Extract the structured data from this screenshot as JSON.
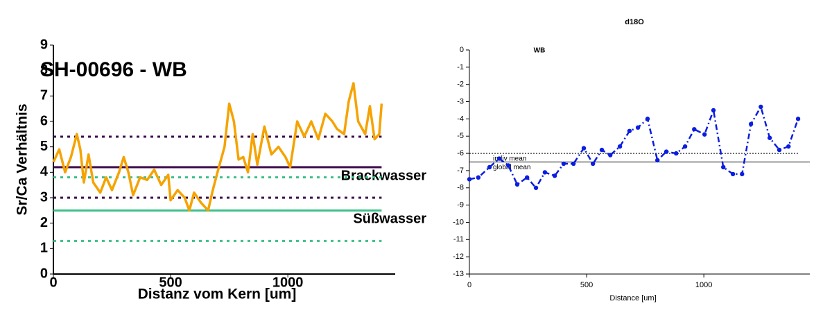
{
  "chart_data": [
    {
      "type": "line",
      "title": "SH-00696 - WB",
      "xlabel": "Distanz vom Kern [um]",
      "ylabel": "Sr/Ca Verhältnis",
      "xlim": [
        0,
        1458
      ],
      "xticks": [
        0,
        500,
        1000
      ],
      "ylim": [
        0,
        9
      ],
      "yticks": [
        0,
        1,
        2,
        3,
        4,
        5,
        6,
        7,
        8,
        9
      ],
      "series": [
        {
          "color": "#f5a300",
          "marker": false,
          "x": [
            0,
            25,
            50,
            75,
            100,
            115,
            130,
            150,
            170,
            200,
            225,
            250,
            280,
            300,
            320,
            340,
            370,
            400,
            430,
            460,
            490,
            500,
            530,
            560,
            580,
            600,
            630,
            660,
            680,
            700,
            730,
            750,
            770,
            790,
            810,
            830,
            850,
            870,
            900,
            930,
            960,
            990,
            1010,
            1040,
            1070,
            1100,
            1130,
            1160,
            1190,
            1210,
            1240,
            1260,
            1280,
            1300,
            1330,
            1350,
            1370,
            1390,
            1400
          ],
          "values": [
            4.4,
            4.9,
            4.0,
            4.6,
            5.5,
            4.9,
            3.6,
            4.7,
            3.6,
            3.2,
            3.8,
            3.3,
            4.0,
            4.6,
            4.0,
            3.1,
            3.8,
            3.7,
            4.1,
            3.5,
            3.9,
            2.9,
            3.3,
            3.0,
            2.5,
            3.2,
            2.8,
            2.5,
            3.3,
            4.0,
            5.0,
            6.7,
            6.0,
            4.5,
            4.6,
            4.0,
            5.5,
            4.3,
            5.8,
            4.7,
            5.0,
            4.6,
            4.2,
            6.0,
            5.4,
            6.0,
            5.3,
            6.3,
            6.0,
            5.7,
            5.5,
            6.8,
            7.5,
            6.0,
            5.5,
            6.6,
            5.3,
            5.5,
            6.7
          ]
        }
      ],
      "hlines": [
        {
          "value": 5.4,
          "color": "#3d0a4a",
          "style": "dotted",
          "x": [
            0,
            1400
          ]
        },
        {
          "value": 4.2,
          "color": "#3d0a4a",
          "style": "solid",
          "x": [
            0,
            1400
          ],
          "label": "Brackwasser"
        },
        {
          "value": 3.8,
          "color": "#3dbf8a",
          "style": "dotted",
          "x": [
            0,
            1400
          ]
        },
        {
          "value": 3.0,
          "color": "#3d0a4a",
          "style": "dotted",
          "x": [
            0,
            1400
          ]
        },
        {
          "value": 2.5,
          "color": "#3dbf8a",
          "style": "solid",
          "x": [
            0,
            1400
          ],
          "label": "Süßwasser"
        },
        {
          "value": 1.3,
          "color": "#3dbf8a",
          "style": "dotted",
          "x": [
            0,
            1400
          ]
        }
      ]
    },
    {
      "type": "line",
      "title": "d18O",
      "subtitle": "WB",
      "xlabel": "Distance [um]",
      "xlim": [
        0,
        1452
      ],
      "xticks": [
        0,
        500,
        1000
      ],
      "ylim": [
        -13,
        0
      ],
      "yticks": [
        0,
        -1,
        -2,
        -3,
        -4,
        -5,
        -6,
        -7,
        -8,
        -9,
        -10,
        -11,
        -12,
        -13
      ],
      "series": [
        {
          "color": "#0a1de0",
          "marker": true,
          "dashed": true,
          "x": [
            0,
            38,
            86,
            127,
            166,
            204,
            246,
            284,
            322,
            364,
            402,
            444,
            488,
            527,
            565,
            601,
            642,
            683,
            719,
            760,
            802,
            840,
            882,
            920,
            959,
            1003,
            1041,
            1083,
            1124,
            1163,
            1201,
            1243,
            1281,
            1322,
            1361,
            1402
          ],
          "values": [
            -7.5,
            -7.4,
            -6.8,
            -6.3,
            -6.7,
            -7.8,
            -7.4,
            -8.0,
            -7.1,
            -7.3,
            -6.6,
            -6.6,
            -5.7,
            -6.6,
            -5.8,
            -6.1,
            -5.6,
            -4.7,
            -4.5,
            -4.0,
            -6.4,
            -5.9,
            -6.0,
            -5.6,
            -4.6,
            -4.9,
            -3.5,
            -6.8,
            -7.2,
            -7.2,
            -4.3,
            -3.3,
            -5.1,
            -5.8,
            -5.6,
            -4.0
          ]
        }
      ],
      "hlines": [
        {
          "value": -6.0,
          "color": "#000000",
          "style": "dotted",
          "x": [
            0,
            1405
          ],
          "label": "indiv mean"
        },
        {
          "value": -6.5,
          "color": "#000000",
          "style": "solid",
          "x": [
            0,
            1452
          ],
          "label": "global mean"
        }
      ]
    }
  ]
}
